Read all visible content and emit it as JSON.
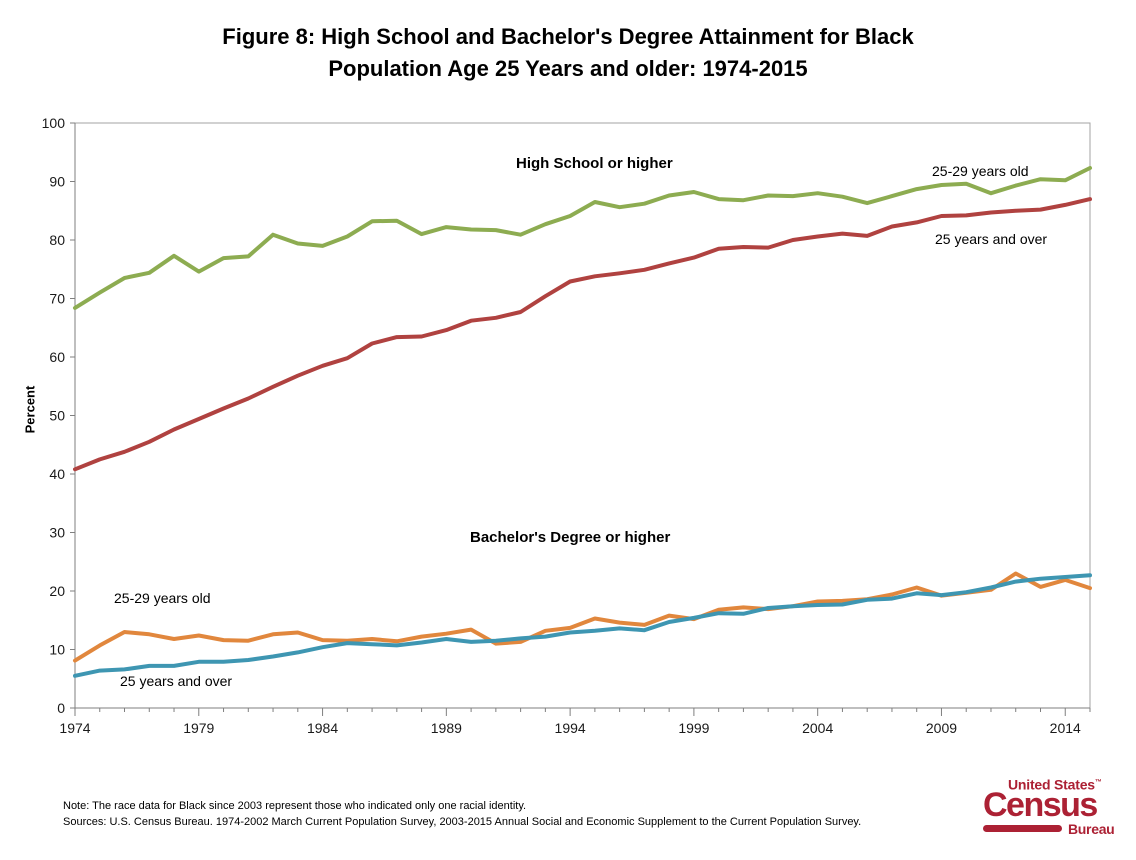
{
  "title": {
    "line1": "Figure 8: High School and Bachelor's Degree Attainment for Black",
    "line2": "Population Age 25 Years and older: 1974-2015"
  },
  "chart_data": {
    "type": "line",
    "title": "Figure 8: High School and Bachelor's Degree Attainment for Black Population Age 25 Years and older: 1974-2015",
    "xlabel": "",
    "ylabel": "Percent",
    "ylim": [
      0,
      100
    ],
    "ytick_step": 10,
    "grid": false,
    "legend_position": "inline-annotations",
    "xticks": [
      1974,
      1979,
      1984,
      1989,
      1994,
      1999,
      2004,
      2009,
      2014
    ],
    "years": [
      1974,
      1975,
      1976,
      1977,
      1978,
      1979,
      1980,
      1981,
      1982,
      1983,
      1984,
      1985,
      1986,
      1987,
      1988,
      1989,
      1990,
      1991,
      1992,
      1993,
      1994,
      1995,
      1996,
      1997,
      1998,
      1999,
      2000,
      2001,
      2002,
      2003,
      2004,
      2005,
      2006,
      2007,
      2008,
      2009,
      2010,
      2011,
      2012,
      2013,
      2014,
      2015
    ],
    "series": [
      {
        "id": "hs-25-29",
        "name": "High School or higher, 25-29 years old",
        "color": "#8DAC51",
        "values": [
          68.4,
          71.0,
          73.5,
          74.4,
          77.3,
          74.6,
          76.9,
          77.2,
          80.9,
          79.4,
          79.0,
          80.6,
          83.2,
          83.3,
          81.0,
          82.2,
          81.8,
          81.7,
          80.9,
          82.7,
          84.1,
          86.5,
          85.6,
          86.2,
          87.6,
          88.2,
          87.0,
          86.8,
          87.6,
          87.5,
          88.0,
          87.4,
          86.3,
          87.5,
          88.7,
          89.4,
          89.6,
          88.0,
          89.3,
          90.4,
          90.2,
          92.3
        ]
      },
      {
        "id": "hs-25-over",
        "name": "High School or higher, 25 years and over",
        "color": "#B04240",
        "values": [
          40.8,
          42.5,
          43.8,
          45.5,
          47.6,
          49.4,
          51.2,
          52.9,
          54.9,
          56.8,
          58.5,
          59.8,
          62.3,
          63.4,
          63.5,
          64.6,
          66.2,
          66.7,
          67.7,
          70.4,
          72.9,
          73.8,
          74.3,
          74.9,
          76.0,
          77.0,
          78.5,
          78.8,
          78.7,
          80.0,
          80.6,
          81.1,
          80.7,
          82.3,
          83.0,
          84.1,
          84.2,
          84.7,
          85.0,
          85.2,
          86.0,
          87.0
        ]
      },
      {
        "id": "ba-25-29",
        "name": "Bachelor's Degree or higher, 25-29 years old",
        "color": "#E1873D",
        "values": [
          8.1,
          10.7,
          13.0,
          12.6,
          11.8,
          12.4,
          11.6,
          11.5,
          12.6,
          12.9,
          11.6,
          11.5,
          11.8,
          11.4,
          12.2,
          12.7,
          13.4,
          11.0,
          11.3,
          13.2,
          13.7,
          15.3,
          14.6,
          14.2,
          15.8,
          15.2,
          16.8,
          17.2,
          16.9,
          17.4,
          18.2,
          18.3,
          18.6,
          19.4,
          20.6,
          19.2,
          19.7,
          20.2,
          23.0,
          20.7,
          21.9,
          20.5
        ]
      },
      {
        "id": "ba-25-over",
        "name": "Bachelor's Degree or higher, 25 years and over",
        "color": "#3E96B2",
        "values": [
          5.5,
          6.4,
          6.6,
          7.2,
          7.2,
          7.9,
          7.9,
          8.2,
          8.8,
          9.5,
          10.4,
          11.1,
          10.9,
          10.7,
          11.2,
          11.8,
          11.3,
          11.5,
          11.9,
          12.2,
          12.9,
          13.2,
          13.6,
          13.3,
          14.7,
          15.4,
          16.2,
          16.1,
          17.1,
          17.4,
          17.6,
          17.7,
          18.5,
          18.7,
          19.6,
          19.3,
          19.8,
          20.6,
          21.6,
          22.1,
          22.4,
          22.7
        ]
      }
    ]
  },
  "annotations": {
    "hs_group": "High School or higher",
    "hs_young": "25-29 years old",
    "hs_old": "25 years and over",
    "ba_group": "Bachelor's Degree or higher",
    "ba_young": "25-29 years old",
    "ba_old": "25 years and over"
  },
  "notes": {
    "note": "Note: The race data for Black since 2003 represent those who indicated only one racial identity.",
    "sources": "Sources:  U.S. Census Bureau. 1974-2002 March Current Population Survey, 2003-2015 Annual Social and Economic Supplement to the Current Population Survey."
  },
  "logo": {
    "united_states": "United States",
    "trademark": "™",
    "census": "Census",
    "bureau": "Bureau",
    "color": "#AC2134"
  },
  "style_colors": {
    "axis": "#7F7F7F",
    "plot_border": "#A3A3A3",
    "tick_label": "#1a1a1a"
  }
}
